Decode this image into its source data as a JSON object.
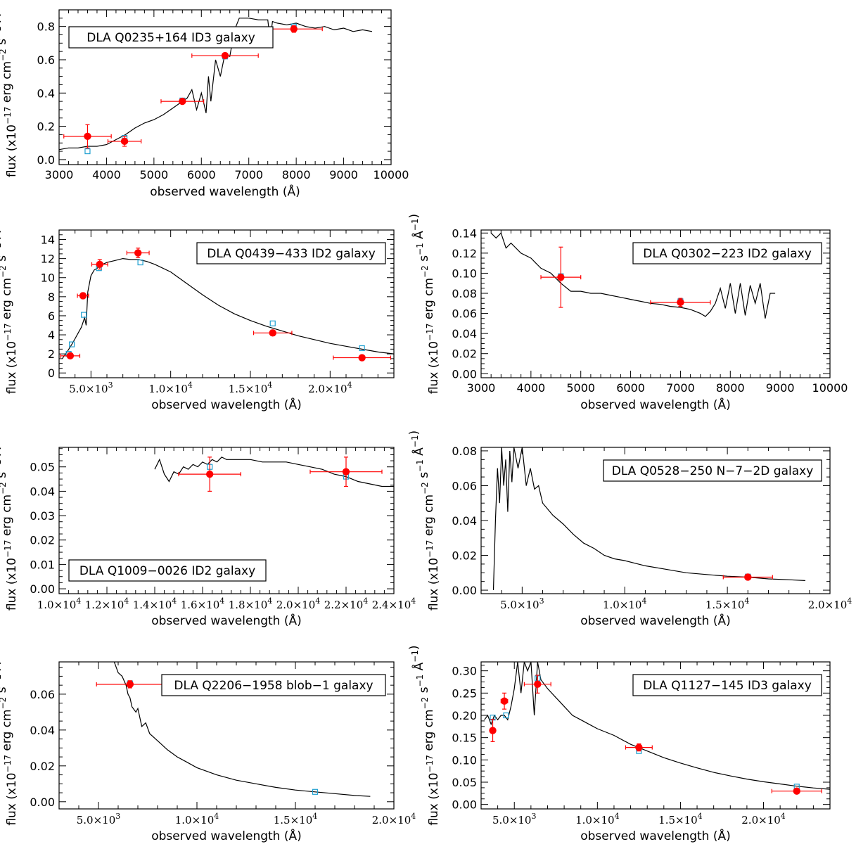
{
  "figure": {
    "xlabel": "observed wavelength (Å)",
    "ylabel": "flux (x10^-17 erg cm^-2 s^-1 Å^-1)"
  },
  "colors": {
    "spectrum": "#000000",
    "observed": "#ff0000",
    "model": "#1f9fd0"
  },
  "chart_data": [
    {
      "id": "p1",
      "type": "scatter",
      "label": "DLA Q0235+164 ID3 galaxy",
      "xlim": [
        3000,
        10000
      ],
      "ylim": [
        -0.03,
        0.9
      ],
      "xticks": [
        3000,
        4000,
        5000,
        6000,
        7000,
        8000,
        9000,
        10000
      ],
      "yticks": [
        0.0,
        0.2,
        0.4,
        0.6,
        0.8
      ],
      "xfmt": "plain",
      "yfmt": "1",
      "legend_position": "top-left",
      "observed": [
        {
          "x": 3600,
          "y": 0.14,
          "xerr": 500,
          "yerr": 0.07
        },
        {
          "x": 4380,
          "y": 0.11,
          "xerr": 350,
          "yerr": 0.03
        },
        {
          "x": 5600,
          "y": 0.35,
          "xerr": 450,
          "yerr": 0.01
        },
        {
          "x": 6500,
          "y": 0.625,
          "xerr": 700,
          "yerr": 0.015
        },
        {
          "x": 7950,
          "y": 0.785,
          "xerr": 600,
          "yerr": 0.02
        }
      ],
      "model_points": [
        {
          "x": 3600,
          "y": 0.05
        },
        {
          "x": 4380,
          "y": 0.13
        },
        {
          "x": 5600,
          "y": 0.355
        },
        {
          "x": 6500,
          "y": 0.62
        },
        {
          "x": 7950,
          "y": 0.8
        }
      ],
      "spectrum": {
        "x": [
          3000,
          3200,
          3400,
          3600,
          3800,
          4000,
          4200,
          4400,
          4600,
          4800,
          5000,
          5200,
          5400,
          5600,
          5700,
          5800,
          5900,
          6000,
          6100,
          6150,
          6200,
          6300,
          6400,
          6500,
          6600,
          6700,
          6800,
          7000,
          7200,
          7400,
          7450,
          7500,
          7600,
          7800,
          8000,
          8200,
          8400,
          8600,
          8800,
          9000,
          9200,
          9400,
          9600
        ],
        "y": [
          0.06,
          0.07,
          0.07,
          0.08,
          0.08,
          0.09,
          0.12,
          0.15,
          0.19,
          0.22,
          0.24,
          0.27,
          0.31,
          0.35,
          0.37,
          0.42,
          0.3,
          0.4,
          0.28,
          0.5,
          0.35,
          0.6,
          0.5,
          0.64,
          0.62,
          0.78,
          0.85,
          0.85,
          0.84,
          0.84,
          0.72,
          0.83,
          0.82,
          0.81,
          0.82,
          0.8,
          0.79,
          0.8,
          0.78,
          0.79,
          0.77,
          0.78,
          0.77
        ]
      }
    },
    {
      "id": "p2",
      "type": "scatter",
      "label": "DLA Q0439−433 ID2 galaxy",
      "xlim": [
        3000,
        24000
      ],
      "ylim": [
        -0.5,
        15
      ],
      "xticks": [
        5000,
        10000,
        15000,
        20000
      ],
      "yticks": [
        0,
        2,
        4,
        6,
        8,
        10,
        12,
        14
      ],
      "xfmt": "sci",
      "yfmt": "0",
      "legend_position": "top-right",
      "observed": [
        {
          "x": 3700,
          "y": 1.8,
          "xerr": 600,
          "yerr": 0.2
        },
        {
          "x": 4500,
          "y": 8.1,
          "xerr": 350,
          "yerr": 0.3
        },
        {
          "x": 5550,
          "y": 11.4,
          "xerr": 500,
          "yerr": 0.5
        },
        {
          "x": 7950,
          "y": 12.6,
          "xerr": 700,
          "yerr": 0.5
        },
        {
          "x": 16400,
          "y": 4.2,
          "xerr": 1200,
          "yerr": 0.3
        },
        {
          "x": 22000,
          "y": 1.6,
          "xerr": 1800,
          "yerr": 0.2
        }
      ],
      "model_points": [
        {
          "x": 3600,
          "y": 2.0
        },
        {
          "x": 3800,
          "y": 3.0
        },
        {
          "x": 4550,
          "y": 6.1
        },
        {
          "x": 5500,
          "y": 11.0
        },
        {
          "x": 8100,
          "y": 11.6
        },
        {
          "x": 16400,
          "y": 5.2
        },
        {
          "x": 22000,
          "y": 2.6
        }
      ],
      "spectrum": {
        "x": [
          3200,
          3500,
          3800,
          4000,
          4200,
          4400,
          4600,
          4700,
          4800,
          5000,
          5200,
          5400,
          5600,
          6000,
          6500,
          7000,
          7500,
          8000,
          8500,
          9000,
          10000,
          11000,
          12000,
          13000,
          14000,
          15000,
          16000,
          17000,
          18000,
          19000,
          20000,
          21000,
          22000,
          23000,
          24000
        ],
        "y": [
          1.5,
          2.2,
          3.0,
          3.6,
          4.2,
          4.8,
          5.8,
          5.0,
          8.5,
          10.2,
          10.8,
          11.0,
          11.3,
          11.6,
          11.8,
          12.0,
          11.9,
          11.9,
          11.7,
          11.4,
          10.6,
          9.4,
          8.2,
          7.1,
          6.2,
          5.5,
          4.9,
          4.4,
          3.9,
          3.5,
          3.1,
          2.8,
          2.5,
          2.2,
          2.0
        ]
      }
    },
    {
      "id": "p3",
      "type": "scatter",
      "label": "DLA Q0302−223 ID2 galaxy",
      "xlim": [
        3000,
        10000
      ],
      "ylim": [
        -0.004,
        0.143
      ],
      "xticks": [
        3000,
        4000,
        5000,
        6000,
        7000,
        8000,
        9000,
        10000
      ],
      "yticks": [
        0.0,
        0.02,
        0.04,
        0.06,
        0.08,
        0.1,
        0.12,
        0.14
      ],
      "xfmt": "plain",
      "yfmt": "2",
      "legend_position": "top-right",
      "observed": [
        {
          "x": 4600,
          "y": 0.096,
          "xerr": 400,
          "yerr": 0.03
        },
        {
          "x": 7000,
          "y": 0.071,
          "xerr": 600,
          "yerr": 0.004
        }
      ],
      "model_points": [
        {
          "x": 4600,
          "y": 0.097
        },
        {
          "x": 7000,
          "y": 0.072
        }
      ],
      "spectrum": {
        "x": [
          3200,
          3300,
          3400,
          3500,
          3600,
          3800,
          4000,
          4200,
          4400,
          4600,
          4800,
          5000,
          5200,
          5400,
          5600,
          5800,
          6000,
          6200,
          6400,
          6600,
          6800,
          7000,
          7200,
          7400,
          7500,
          7600,
          7700,
          7800,
          7900,
          8000,
          8100,
          8200,
          8300,
          8400,
          8500,
          8600,
          8700,
          8800,
          8900
        ],
        "y": [
          0.14,
          0.135,
          0.14,
          0.125,
          0.13,
          0.12,
          0.115,
          0.105,
          0.1,
          0.09,
          0.082,
          0.082,
          0.08,
          0.08,
          0.078,
          0.076,
          0.074,
          0.072,
          0.07,
          0.069,
          0.067,
          0.066,
          0.064,
          0.06,
          0.057,
          0.062,
          0.07,
          0.085,
          0.065,
          0.09,
          0.06,
          0.09,
          0.058,
          0.088,
          0.07,
          0.09,
          0.055,
          0.08,
          0.08
        ]
      }
    },
    {
      "id": "p4",
      "type": "scatter",
      "label": "DLA Q1009−0026 ID2 galaxy",
      "xlim": [
        10000,
        24000
      ],
      "ylim": [
        -0.002,
        0.058
      ],
      "xticks": [
        10000,
        12000,
        14000,
        16000,
        18000,
        20000,
        22000,
        24000
      ],
      "yticks": [
        0.0,
        0.01,
        0.02,
        0.03,
        0.04,
        0.05
      ],
      "xfmt": "sci",
      "yfmt": "2",
      "legend_position": "bottom-left",
      "observed": [
        {
          "x": 16300,
          "y": 0.047,
          "xerr": 1300,
          "yerr": 0.007
        },
        {
          "x": 22000,
          "y": 0.048,
          "xerr": 1500,
          "yerr": 0.006
        }
      ],
      "model_points": [
        {
          "x": 16300,
          "y": 0.05
        },
        {
          "x": 22000,
          "y": 0.046
        }
      ],
      "spectrum": {
        "x": [
          14000,
          14200,
          14400,
          14600,
          14800,
          15000,
          15200,
          15400,
          15600,
          15800,
          16000,
          16200,
          16400,
          16600,
          16800,
          17000,
          17500,
          18000,
          18500,
          19000,
          19500,
          20000,
          20500,
          21000,
          21500,
          22000,
          22500,
          23000,
          23500,
          24000
        ],
        "y": [
          0.049,
          0.053,
          0.047,
          0.044,
          0.048,
          0.047,
          0.05,
          0.049,
          0.051,
          0.05,
          0.052,
          0.051,
          0.053,
          0.052,
          0.054,
          0.053,
          0.053,
          0.053,
          0.052,
          0.052,
          0.052,
          0.051,
          0.05,
          0.049,
          0.047,
          0.046,
          0.044,
          0.043,
          0.042,
          0.042
        ]
      }
    },
    {
      "id": "p5",
      "type": "scatter",
      "label": "DLA Q0528−250 N−7−2D galaxy",
      "xlim": [
        3000,
        20000
      ],
      "ylim": [
        -0.002,
        0.082
      ],
      "xticks": [
        5000,
        10000,
        15000,
        20000
      ],
      "yticks": [
        0.0,
        0.02,
        0.04,
        0.06,
        0.08
      ],
      "xfmt": "sci",
      "yfmt": "2",
      "legend_position": "top-right",
      "observed": [
        {
          "x": 16000,
          "y": 0.0075,
          "xerr": 1200,
          "yerr": 0.0005
        }
      ],
      "model_points": [
        {
          "x": 16000,
          "y": 0.0078
        }
      ],
      "spectrum": {
        "x": [
          3600,
          3700,
          3800,
          3900,
          4000,
          4100,
          4200,
          4300,
          4400,
          4500,
          4600,
          4800,
          5000,
          5200,
          5400,
          5600,
          5800,
          6000,
          6500,
          7000,
          7500,
          8000,
          8500,
          9000,
          9500,
          10000,
          11000,
          12000,
          13000,
          14000,
          15000,
          16000,
          17000,
          18000,
          18800
        ],
        "y": [
          0.0,
          0.04,
          0.07,
          0.05,
          0.082,
          0.06,
          0.075,
          0.045,
          0.08,
          0.062,
          0.082,
          0.07,
          0.082,
          0.06,
          0.07,
          0.058,
          0.06,
          0.05,
          0.043,
          0.038,
          0.032,
          0.027,
          0.024,
          0.02,
          0.018,
          0.017,
          0.014,
          0.012,
          0.01,
          0.009,
          0.008,
          0.0075,
          0.0065,
          0.006,
          0.0055
        ]
      }
    },
    {
      "id": "p6",
      "type": "scatter",
      "label": "DLA Q2206−1958 blob−1 galaxy",
      "xlim": [
        3000,
        20000
      ],
      "ylim": [
        -0.004,
        0.078
      ],
      "xticks": [
        5000,
        10000,
        15000,
        20000
      ],
      "yticks": [
        0.0,
        0.02,
        0.04,
        0.06
      ],
      "xfmt": "sci",
      "yfmt": "2",
      "legend_position": "top-right",
      "observed": [
        {
          "x": 6600,
          "y": 0.0655,
          "xerr": 1700,
          "yerr": 0.002
        }
      ],
      "model_points": [
        {
          "x": 6600,
          "y": 0.066
        },
        {
          "x": 16000,
          "y": 0.0055
        }
      ],
      "spectrum": {
        "x": [
          5800,
          6000,
          6200,
          6400,
          6500,
          6600,
          6700,
          6900,
          7000,
          7200,
          7400,
          7600,
          8000,
          8500,
          9000,
          9500,
          10000,
          11000,
          12000,
          13000,
          14000,
          15000,
          16000,
          17000,
          18000,
          18800
        ],
        "y": [
          0.078,
          0.072,
          0.07,
          0.065,
          0.06,
          0.058,
          0.053,
          0.05,
          0.052,
          0.042,
          0.044,
          0.038,
          0.034,
          0.029,
          0.025,
          0.022,
          0.019,
          0.015,
          0.012,
          0.01,
          0.008,
          0.0065,
          0.0055,
          0.0045,
          0.0035,
          0.003
        ]
      }
    },
    {
      "id": "p7",
      "type": "scatter",
      "label": "DLA Q1127−145 ID3 galaxy",
      "xlim": [
        3000,
        24000
      ],
      "ylim": [
        -0.01,
        0.32
      ],
      "xticks": [
        5000,
        10000,
        15000,
        20000
      ],
      "yticks": [
        0.0,
        0.05,
        0.1,
        0.15,
        0.2,
        0.25,
        0.3
      ],
      "xfmt": "sci",
      "yfmt": "2",
      "legend_position": "top-right",
      "observed": [
        {
          "x": 3700,
          "y": 0.166,
          "xerr": 150,
          "yerr": 0.025
        },
        {
          "x": 4400,
          "y": 0.232,
          "xerr": 200,
          "yerr": 0.018
        },
        {
          "x": 6400,
          "y": 0.27,
          "xerr": 800,
          "yerr": 0.02
        },
        {
          "x": 12500,
          "y": 0.128,
          "xerr": 800,
          "yerr": 0.008
        },
        {
          "x": 22000,
          "y": 0.03,
          "xerr": 1500,
          "yerr": 0.004
        }
      ],
      "model_points": [
        {
          "x": 3700,
          "y": 0.195
        },
        {
          "x": 4500,
          "y": 0.2
        },
        {
          "x": 6400,
          "y": 0.283
        },
        {
          "x": 12500,
          "y": 0.12
        },
        {
          "x": 22000,
          "y": 0.04
        }
      ],
      "spectrum": {
        "x": [
          3200,
          3400,
          3600,
          3800,
          4000,
          4200,
          4400,
          4600,
          4800,
          5000,
          5200,
          5400,
          5600,
          5800,
          6000,
          6200,
          6400,
          6500,
          6600,
          6800,
          7000,
          7500,
          8000,
          8500,
          9000,
          9500,
          10000,
          11000,
          12000,
          13000,
          14000,
          15000,
          16000,
          17000,
          18000,
          19000,
          20000,
          21000,
          22000,
          23000,
          24000
        ],
        "y": [
          0.19,
          0.2,
          0.18,
          0.2,
          0.19,
          0.2,
          0.2,
          0.19,
          0.22,
          0.26,
          0.32,
          0.25,
          0.32,
          0.3,
          0.32,
          0.2,
          0.32,
          0.3,
          0.28,
          0.27,
          0.26,
          0.24,
          0.22,
          0.2,
          0.19,
          0.18,
          0.17,
          0.155,
          0.135,
          0.12,
          0.105,
          0.093,
          0.082,
          0.072,
          0.064,
          0.057,
          0.051,
          0.046,
          0.041,
          0.037,
          0.034
        ]
      }
    }
  ]
}
